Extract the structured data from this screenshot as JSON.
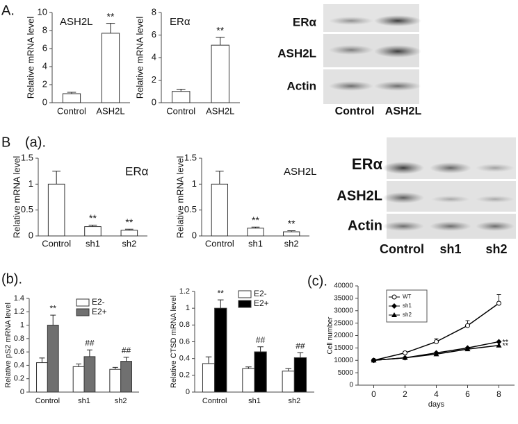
{
  "figure": {
    "panel_labels": [
      "A.",
      "B",
      "(a).",
      "(b).",
      "(c)."
    ],
    "blots": [
      {
        "rows": [
          "ERα",
          "ASH2L",
          "Actin"
        ],
        "columns": [
          "Control",
          "ASH2L"
        ]
      },
      {
        "rows": [
          "ERα",
          "ASH2L",
          "Actin"
        ],
        "columns": [
          "Control",
          "sh1",
          "sh2"
        ]
      }
    ]
  },
  "chart_data": [
    {
      "type": "bar",
      "title": "ASH2L",
      "ylabel": "Relative  mRNA level",
      "categories": [
        "Control",
        "ASH2L"
      ],
      "values": [
        1,
        7.7
      ],
      "errors": [
        0.15,
        1.1
      ],
      "annotations": [
        null,
        "**"
      ],
      "color": "#ffffff",
      "ylim": [
        0,
        10
      ],
      "yticks": [
        0,
        2,
        4,
        6,
        8,
        10
      ]
    },
    {
      "type": "bar",
      "title": "ERα",
      "ylabel": "Relative  mRNA level",
      "categories": [
        "Control",
        "ASH2L"
      ],
      "values": [
        1,
        5.1
      ],
      "errors": [
        0.2,
        0.7
      ],
      "annotations": [
        null,
        "**"
      ],
      "color": "#ffffff",
      "ylim": [
        0,
        8
      ],
      "yticks": [
        0,
        2,
        4,
        6,
        8
      ]
    },
    {
      "type": "bar",
      "title": "ERα",
      "ylabel": "Relative  mRNA level",
      "categories": [
        "Control",
        "sh1",
        "sh2"
      ],
      "values": [
        1,
        0.18,
        0.11
      ],
      "errors": [
        0.25,
        0.03,
        0.02
      ],
      "annotations": [
        null,
        "**",
        "**"
      ],
      "color": "#ffffff",
      "ylim": [
        0,
        1.5
      ],
      "yticks": [
        0,
        0.5,
        1,
        1.5
      ]
    },
    {
      "type": "bar",
      "title": "ASH2L",
      "ylabel": "Relative  mRNA level",
      "categories": [
        "Control",
        "sh1",
        "sh2"
      ],
      "values": [
        1,
        0.15,
        0.08
      ],
      "errors": [
        0.25,
        0.02,
        0.02
      ],
      "annotations": [
        null,
        "**",
        "**"
      ],
      "color": "#ffffff",
      "ylim": [
        0,
        1.5
      ],
      "yticks": [
        0,
        0.5,
        1,
        1.5
      ]
    },
    {
      "type": "bar",
      "ylabel": "Relative pS2 mRNA level",
      "categories": [
        "Control",
        "sh1",
        "sh2"
      ],
      "series": [
        {
          "name": "E2-",
          "color": "#ffffff",
          "values": [
            0.44,
            0.38,
            0.34
          ],
          "errors": [
            0.07,
            0.04,
            0.03
          ]
        },
        {
          "name": "E2+",
          "color": "#707070",
          "values": [
            1.0,
            0.53,
            0.46
          ],
          "errors": [
            0.15,
            0.1,
            0.06
          ],
          "annotations": [
            "**",
            "##",
            "##"
          ]
        }
      ],
      "ylim": [
        0,
        1.4
      ],
      "yticks": [
        0,
        0.2,
        0.4,
        0.6,
        0.8,
        1,
        1.2,
        1.4
      ]
    },
    {
      "type": "bar",
      "ylabel": "Relative CTSD mRNA level",
      "categories": [
        "Control",
        "sh1",
        "sh2"
      ],
      "series": [
        {
          "name": "E2-",
          "color": "#ffffff",
          "values": [
            0.34,
            0.28,
            0.25
          ],
          "errors": [
            0.08,
            0.02,
            0.03
          ]
        },
        {
          "name": "E2+",
          "color": "#000000",
          "values": [
            1.0,
            0.48,
            0.41
          ],
          "errors": [
            0.1,
            0.06,
            0.06
          ],
          "annotations": [
            "**",
            "##",
            "##"
          ]
        }
      ],
      "ylim": [
        0,
        1.2
      ],
      "yticks": [
        0,
        0.2,
        0.4,
        0.6,
        0.8,
        1,
        1.2
      ]
    },
    {
      "type": "line",
      "xlabel": "days",
      "ylabel": "Cell number",
      "x": [
        0,
        2,
        4,
        6,
        8
      ],
      "series": [
        {
          "name": "WT",
          "color": "#000000",
          "marker": "circle-open",
          "values": [
            10000,
            13000,
            17500,
            24000,
            33000
          ],
          "errors": [
            0,
            600,
            1200,
            2000,
            3500
          ]
        },
        {
          "name": "sh1",
          "color": "#000000",
          "marker": "diamond",
          "values": [
            10000,
            11000,
            13000,
            15000,
            17500
          ],
          "end_label": "**"
        },
        {
          "name": "sh2",
          "color": "#000000",
          "marker": "triangle",
          "values": [
            10000,
            11000,
            12500,
            14500,
            16000
          ],
          "end_label": "**"
        }
      ],
      "xlim": [
        -1,
        9
      ],
      "xticks": [
        0,
        2,
        4,
        6,
        8
      ],
      "ylim": [
        0,
        40000
      ],
      "yticks": [
        0,
        5000,
        10000,
        15000,
        20000,
        25000,
        30000,
        35000,
        40000
      ]
    }
  ]
}
